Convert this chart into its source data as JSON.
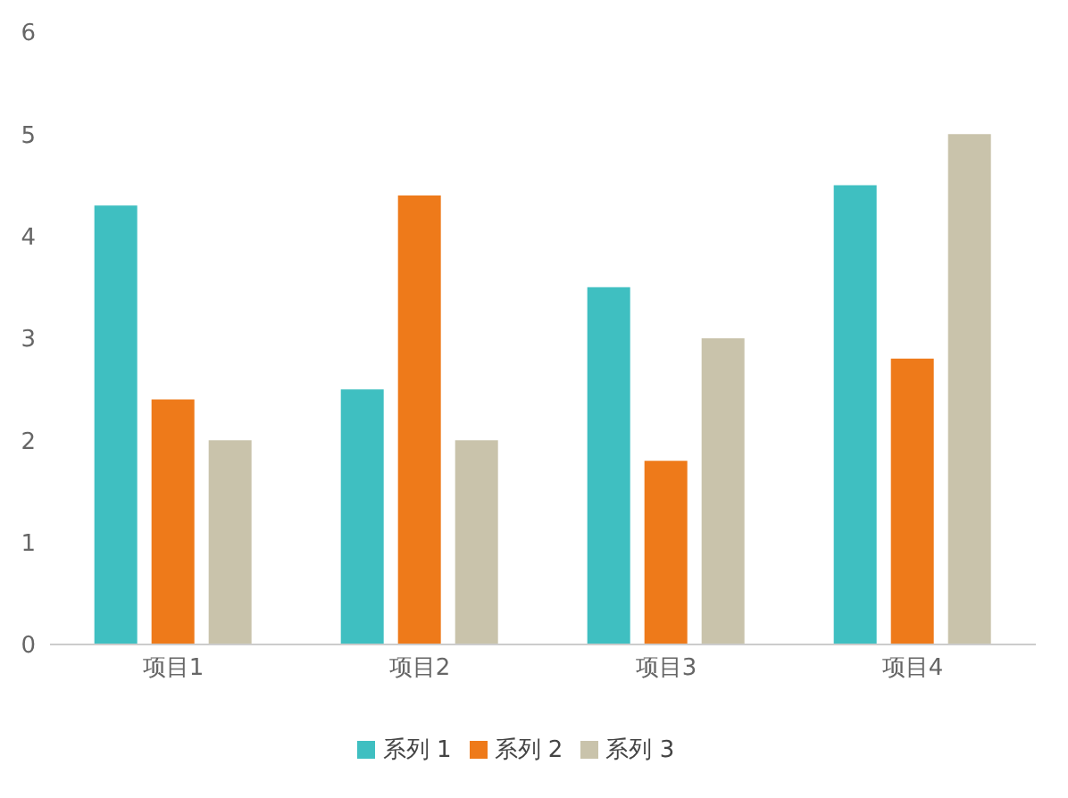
{
  "chart_data": {
    "type": "bar",
    "categories": [
      "项目1",
      "项目2",
      "项目3",
      "项目4"
    ],
    "series": [
      {
        "name": "系列 1",
        "color": "#3fbfc1",
        "values": [
          4.3,
          2.5,
          3.5,
          4.5
        ]
      },
      {
        "name": "系列 2",
        "color": "#ee7a1a",
        "values": [
          2.4,
          4.4,
          1.8,
          2.8
        ]
      },
      {
        "name": "系列 3",
        "color": "#c9c3ab",
        "values": [
          2,
          2,
          3,
          5
        ]
      }
    ],
    "ylim": [
      0,
      6
    ],
    "yticks": [
      0,
      1,
      2,
      3,
      4,
      5,
      6
    ],
    "grid": false,
    "legend": "bottom"
  }
}
